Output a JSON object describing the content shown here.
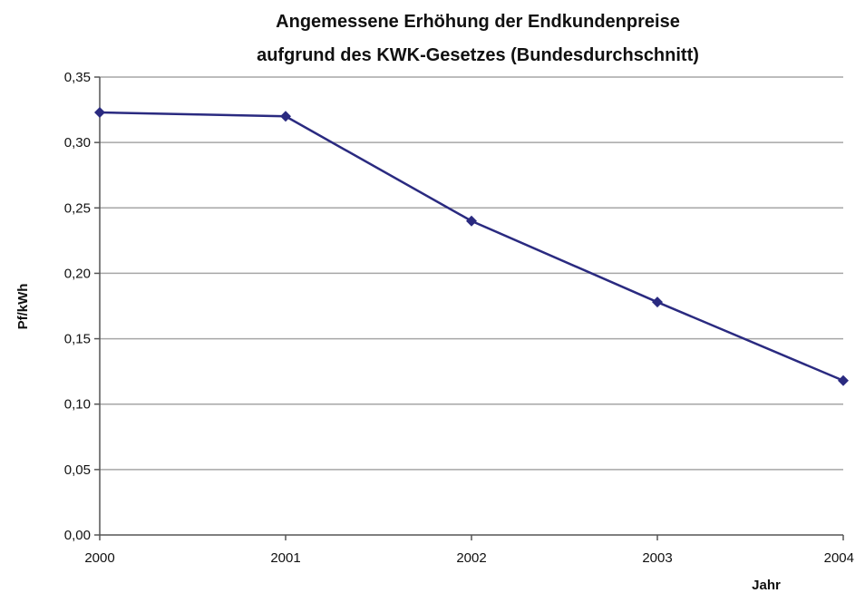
{
  "chart_data": {
    "type": "line",
    "title": "Angemessene Erhöhung der Endkundenpreise",
    "subtitle": "aufgrund des KWK-Gesetzes (Bundesdurchschnitt)",
    "xlabel": "Jahr",
    "ylabel": "Pf/kWh",
    "categories": [
      "2000",
      "2001",
      "2002",
      "2003",
      "2004"
    ],
    "series": [
      {
        "values": [
          0.323,
          0.32,
          0.24,
          0.178,
          0.118
        ]
      }
    ],
    "ylim": [
      0,
      0.35
    ],
    "yticks": [
      "0,00",
      "0,05",
      "0,10",
      "0,15",
      "0,20",
      "0,25",
      "0,30",
      "0,35"
    ],
    "grid": true,
    "legend": "none",
    "colors": {
      "line": "#2a2a80",
      "grid": "#a6a6a6",
      "axis": "#555555"
    }
  }
}
